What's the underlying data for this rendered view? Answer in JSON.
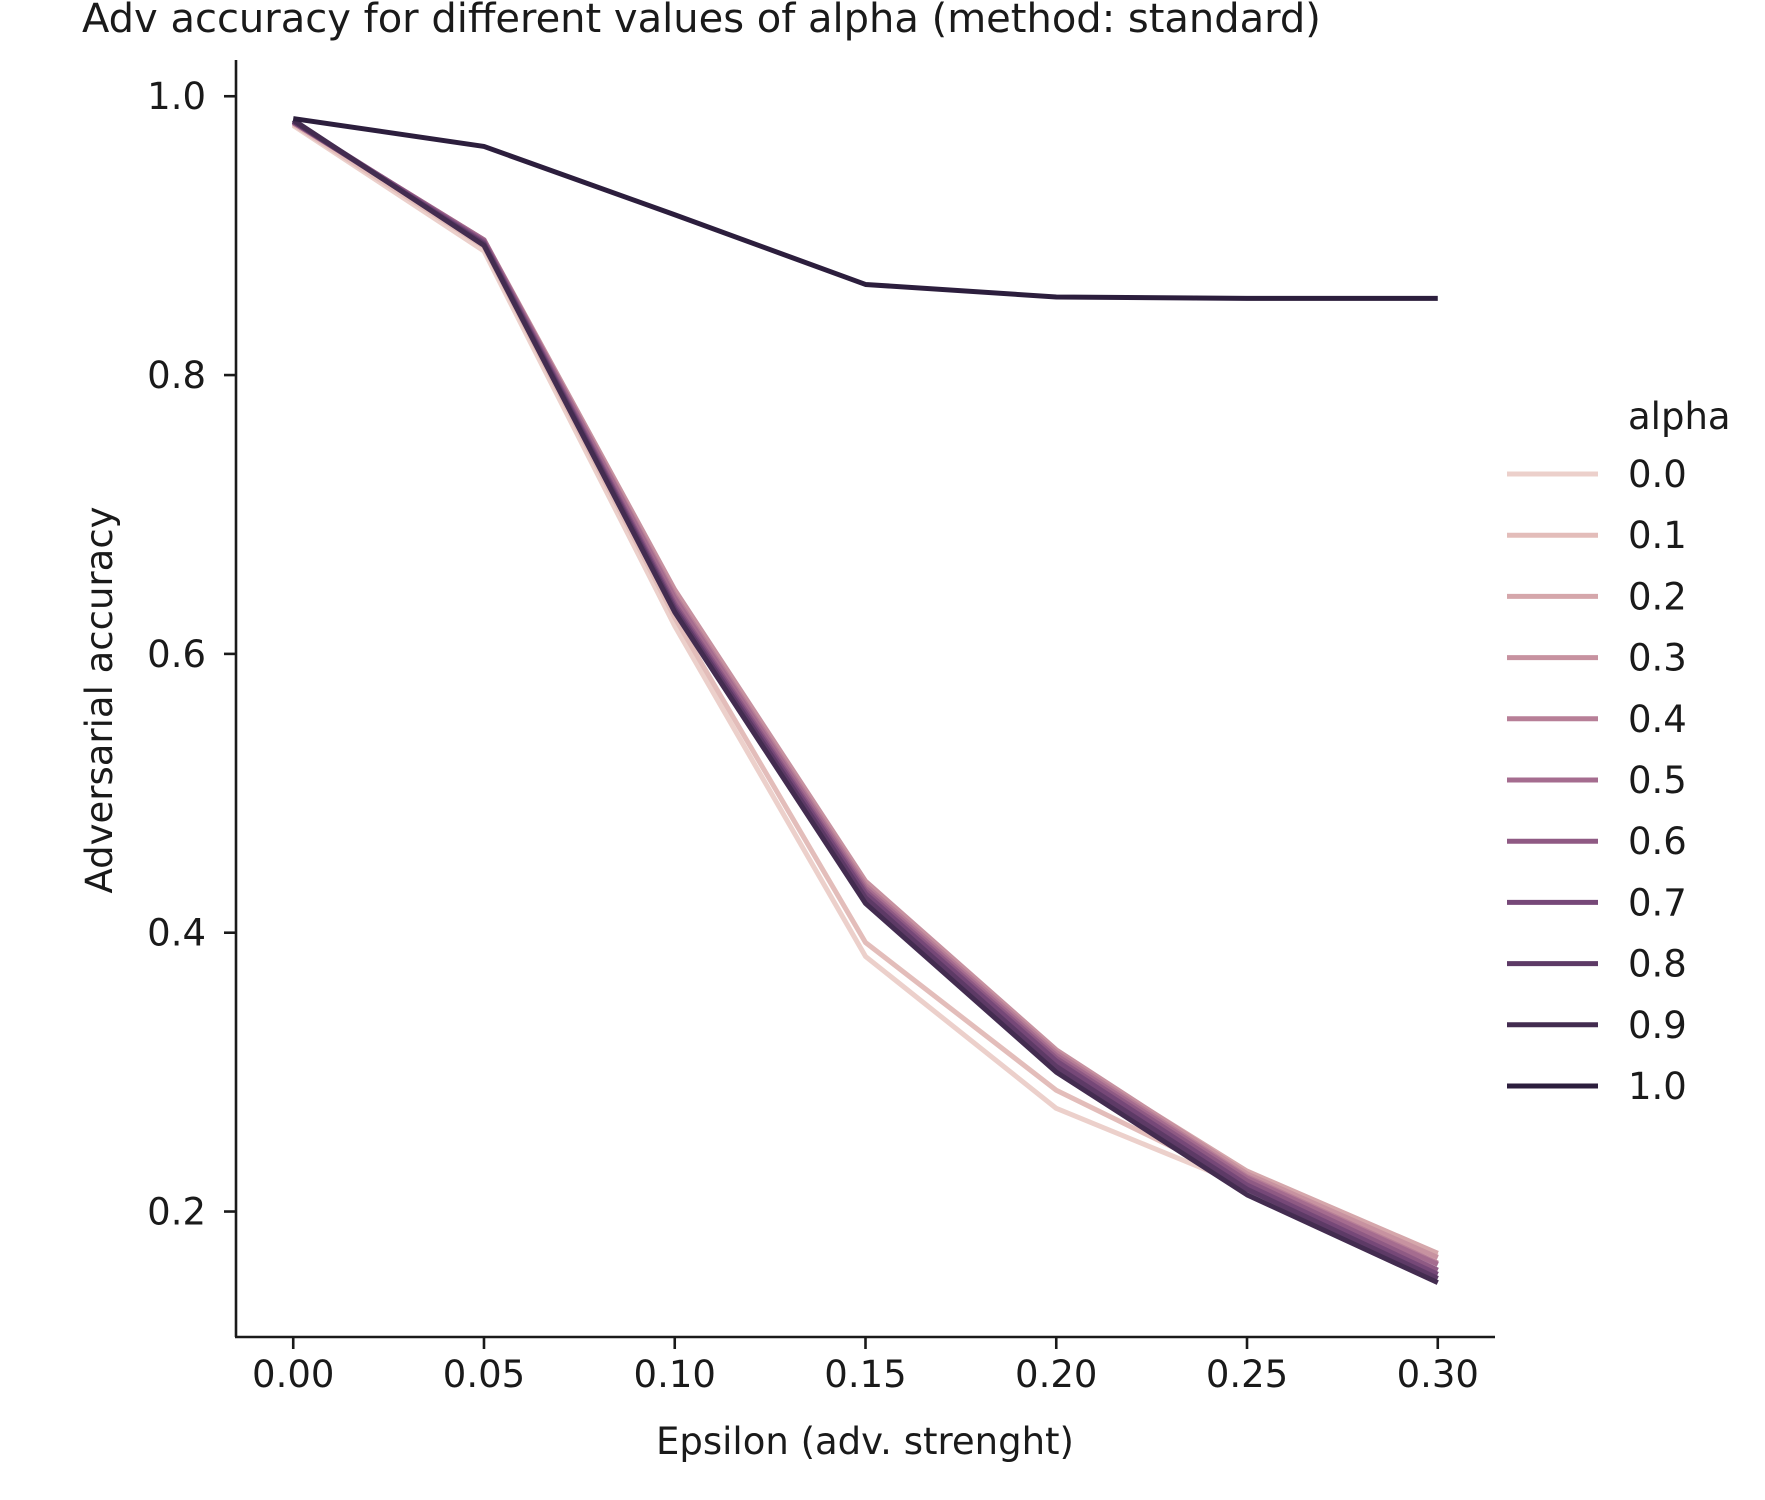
{
  "chart_data": {
    "type": "line",
    "title": "Adv accuracy for different values of alpha (method: standard)",
    "xlabel": "Epsilon (adv. strenght)",
    "ylabel": "Adversarial accuracy",
    "x": [
      0.0,
      0.05,
      0.1,
      0.15,
      0.2,
      0.25,
      0.3
    ],
    "x_ticks": [
      "0.00",
      "0.05",
      "0.10",
      "0.15",
      "0.20",
      "0.25",
      "0.30"
    ],
    "y_ticks": [
      "0.2",
      "0.4",
      "0.6",
      "0.8",
      "1.0"
    ],
    "xlim": [
      -0.015,
      0.315
    ],
    "ylim": [
      0.11,
      1.026
    ],
    "grid": false,
    "legend": {
      "title": "alpha",
      "placement": "right"
    },
    "series": [
      {
        "name": "0.0",
        "color": "#ecd0cb",
        "values": [
          0.979,
          0.889,
          0.62,
          0.383,
          0.274,
          0.218,
          0.168
        ]
      },
      {
        "name": "0.1",
        "color": "#e3bdba",
        "values": [
          0.98,
          0.892,
          0.626,
          0.393,
          0.287,
          0.22,
          0.17
        ]
      },
      {
        "name": "0.2",
        "color": "#d5a7ab",
        "values": [
          0.981,
          0.896,
          0.645,
          0.436,
          0.314,
          0.229,
          0.17
        ]
      },
      {
        "name": "0.3",
        "color": "#c792a0",
        "values": [
          0.981,
          0.897,
          0.646,
          0.437,
          0.316,
          0.227,
          0.167
        ]
      },
      {
        "name": "0.4",
        "color": "#b77f97",
        "values": [
          0.981,
          0.897,
          0.642,
          0.434,
          0.314,
          0.225,
          0.163
        ]
      },
      {
        "name": "0.5",
        "color": "#a56c8f",
        "values": [
          0.981,
          0.897,
          0.64,
          0.432,
          0.312,
          0.224,
          0.162
        ]
      },
      {
        "name": "0.6",
        "color": "#8f5a84",
        "values": [
          0.982,
          0.896,
          0.636,
          0.43,
          0.31,
          0.222,
          0.158
        ]
      },
      {
        "name": "0.7",
        "color": "#764878",
        "values": [
          0.982,
          0.895,
          0.634,
          0.428,
          0.308,
          0.219,
          0.155
        ]
      },
      {
        "name": "0.8",
        "color": "#5d3a66",
        "values": [
          0.982,
          0.894,
          0.632,
          0.425,
          0.304,
          0.216,
          0.152
        ]
      },
      {
        "name": "0.9",
        "color": "#432c50",
        "values": [
          0.983,
          0.893,
          0.63,
          0.421,
          0.3,
          0.212,
          0.149
        ]
      },
      {
        "name": "1.0",
        "color": "#2c1e3d",
        "values": [
          0.984,
          0.964,
          0.915,
          0.865,
          0.856,
          0.855,
          0.855
        ]
      }
    ]
  }
}
